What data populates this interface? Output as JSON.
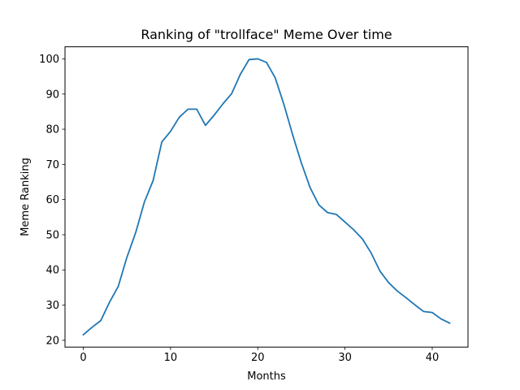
{
  "chart_data": {
    "type": "line",
    "title": "Ranking of \"trollface\" Meme Over time",
    "xlabel": "Months",
    "ylabel": "Meme Ranking",
    "xlim": [
      -2.1,
      44.1
    ],
    "ylim": [
      18.07,
      103.43
    ],
    "xticks": [
      0,
      10,
      20,
      30,
      40
    ],
    "yticks": [
      20,
      30,
      40,
      50,
      60,
      70,
      80,
      90,
      100
    ],
    "grid": false,
    "line_color": "#1f77b4",
    "series": [
      {
        "x": [
          0,
          1,
          2,
          3,
          4,
          5,
          6,
          7,
          8,
          9,
          10,
          11,
          12,
          13,
          14,
          15,
          16,
          17,
          18,
          19,
          20,
          21,
          22,
          23,
          24,
          25,
          26,
          27,
          28,
          29,
          30,
          31,
          32,
          33,
          34,
          35,
          36,
          37,
          38,
          39,
          40,
          41,
          42
        ],
        "values": [
          21.6,
          23.7,
          25.6,
          30.8,
          35.3,
          43.6,
          50.6,
          59.3,
          65.4,
          76.4,
          79.4,
          83.4,
          85.7,
          85.7,
          81.1,
          84.0,
          87.2,
          90.1,
          95.6,
          99.8,
          100.0,
          99.0,
          94.6,
          87.0,
          78.4,
          70.4,
          63.4,
          58.5,
          56.3,
          55.8,
          53.6,
          51.4,
          48.8,
          44.8,
          39.7,
          36.4,
          34.0,
          32.1,
          30.1,
          28.2,
          27.9,
          26.1,
          24.9
        ]
      }
    ]
  }
}
